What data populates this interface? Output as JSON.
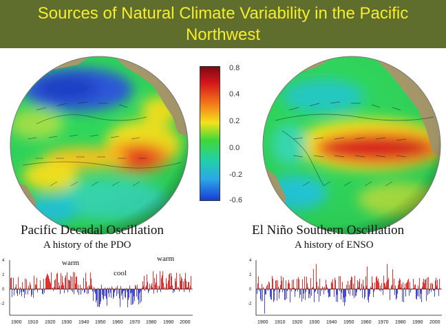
{
  "header": {
    "title": "Sources of Natural Climate Variability in the Pacific Northwest"
  },
  "colorbar": {
    "labels": [
      "0.8",
      "0.4",
      "0.2",
      "0.0",
      "-0.2",
      "-0.6"
    ]
  },
  "pdo": {
    "title": "Pacific Decadal Oscillation",
    "subtitle": "A history of the PDO",
    "phase_labels": [
      "warm",
      "cool",
      "warm"
    ],
    "y_ticks": [
      "4",
      "2",
      "0",
      "-2"
    ],
    "x_ticks": [
      "1900",
      "1910",
      "1920",
      "1930",
      "1940",
      "1950",
      "1960",
      "1970",
      "1980",
      "1990",
      "2000"
    ]
  },
  "enso": {
    "title": "El Niño Southern Oscillation",
    "subtitle": "A history of ENSO",
    "y_ticks": [
      "4",
      "2",
      "0",
      "-2"
    ],
    "x_ticks": [
      "1900",
      "1910",
      "1920",
      "1930",
      "1940",
      "1950",
      "1960",
      "1970",
      "1980",
      "1990",
      "2000"
    ]
  },
  "colors": {
    "title_bar": "#5f6e2d",
    "title_text": "#f7ee2a",
    "positive": "#e03030",
    "negative": "#4a4ad0"
  }
}
